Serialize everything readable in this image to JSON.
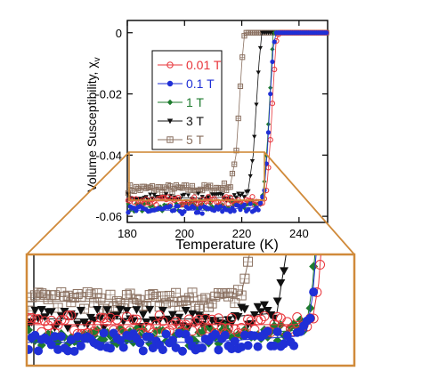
{
  "chart_data": [
    {
      "type": "scatter",
      "xlabel": "Temperature (K)",
      "ylabel": "Volume Susceptibility, χ",
      "ylabel_subscript": "v",
      "xlim": [
        180,
        250
      ],
      "ylim": [
        -0.062,
        0.004
      ],
      "x_ticks": [
        180,
        200,
        220,
        240
      ],
      "x_tick_labels": [
        "180",
        "200",
        "220",
        "240"
      ],
      "y_ticks": [
        0,
        -0.02,
        -0.04,
        -0.06
      ],
      "y_tick_labels": [
        "0",
        "-0.02",
        "-0.04",
        "-0.06"
      ],
      "grid": false,
      "legend_position": "upper-left inside",
      "series": [
        {
          "name": "0.01 T",
          "color": "#e8343a",
          "marker": "open-circle",
          "x": [
            180,
            195,
            210,
            225,
            228,
            229,
            230,
            231,
            232,
            233,
            240,
            250
          ],
          "y": [
            -0.055,
            -0.055,
            -0.055,
            -0.055,
            -0.054,
            -0.048,
            -0.035,
            -0.018,
            -0.003,
            0.0,
            0.0,
            0.0
          ]
        },
        {
          "name": "0.1 T",
          "color": "#1f2fd6",
          "marker": "filled-circle",
          "x": [
            180,
            195,
            210,
            225,
            227,
            228,
            229,
            230,
            231,
            232,
            240,
            250
          ],
          "y": [
            -0.058,
            -0.058,
            -0.058,
            -0.057,
            -0.056,
            -0.05,
            -0.038,
            -0.02,
            -0.005,
            0.0,
            0.0,
            0.0
          ]
        },
        {
          "name": "1 T",
          "color": "#1e7b2e",
          "marker": "filled-diamond",
          "x": [
            180,
            195,
            210,
            225,
            227,
            228,
            229,
            230,
            231,
            240,
            250
          ],
          "y": [
            -0.057,
            -0.057,
            -0.057,
            -0.056,
            -0.055,
            -0.048,
            -0.035,
            -0.018,
            0.0,
            0.0,
            0.0
          ]
        },
        {
          "name": "3 T",
          "color": "#111111",
          "marker": "filled-triangle-down",
          "x": [
            180,
            195,
            210,
            222,
            224,
            225,
            226,
            227,
            240,
            250
          ],
          "y": [
            -0.054,
            -0.054,
            -0.054,
            -0.053,
            -0.04,
            -0.025,
            -0.01,
            0.0,
            0.0,
            0.0
          ]
        },
        {
          "name": "5 T",
          "color": "#8a7060",
          "marker": "open-square",
          "x": [
            180,
            195,
            210,
            216,
            218,
            219,
            220,
            221,
            240,
            250
          ],
          "y": [
            -0.051,
            -0.051,
            -0.051,
            -0.05,
            -0.04,
            -0.025,
            -0.01,
            0.0,
            0.0,
            0.0
          ]
        }
      ]
    },
    {
      "type": "scatter",
      "view": "magnified inset of the boxed low-temperature region",
      "xlim": [
        180,
        235
      ],
      "ylim": [
        -0.062,
        -0.043
      ]
    }
  ],
  "colors": {
    "zoom_box": "#d08a3a",
    "axis": "#000000"
  }
}
